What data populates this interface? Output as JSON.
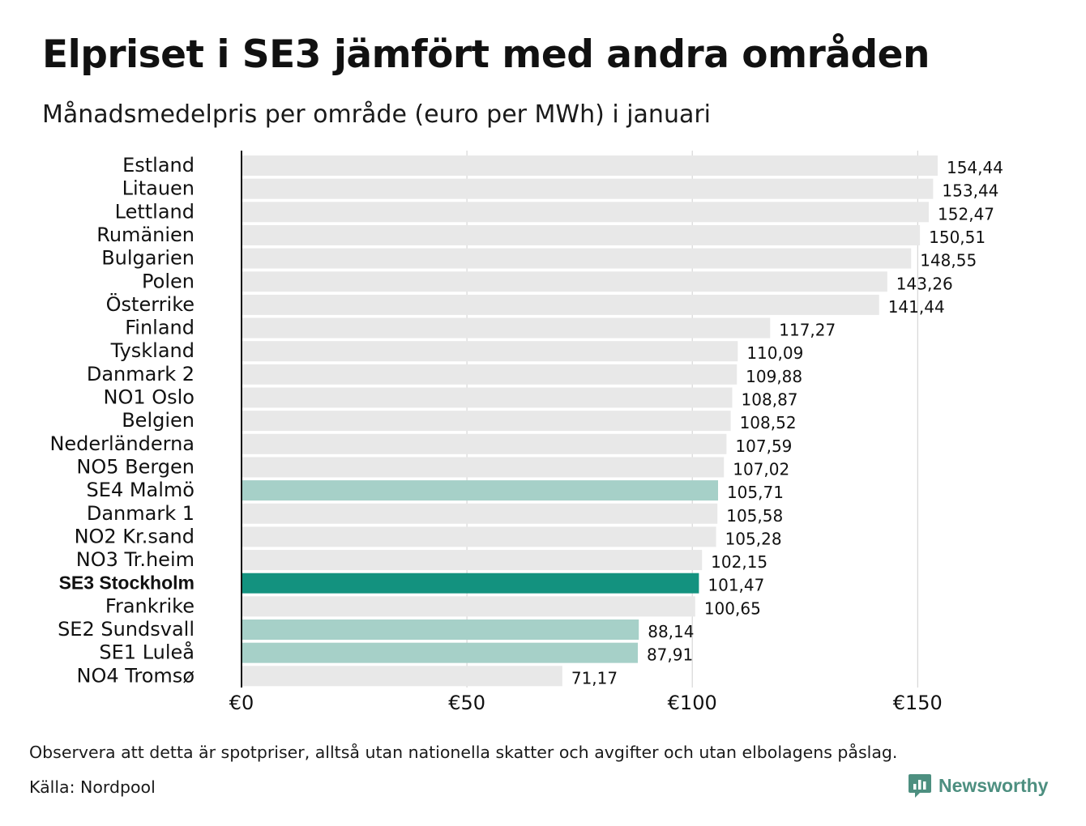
{
  "header": {
    "title": "Elpriset i SE3 jämfört med andra områden",
    "subtitle": "Månadsmedelpris per område (euro per MWh) i januari"
  },
  "footer": {
    "note": "Observera att detta är spotpriser, alltså utan nationella skatter och avgifter och utan elbolagens påslag.",
    "source": "Källa: Nordpool",
    "logo_text": "Newsworthy"
  },
  "colors": {
    "default_bar": "#e8e8e8",
    "se_bar": "#a6d0c8",
    "highlight_bar": "#13927f",
    "axis": "#111111",
    "grid": "#cfcfcf",
    "logo": "#4d8f80"
  },
  "chart_data": {
    "type": "bar",
    "orientation": "horizontal",
    "title": "Elpriset i SE3 jämfört med andra områden",
    "subtitle": "Månadsmedelpris per område (euro per MWh) i januari",
    "xlim": [
      0,
      162
    ],
    "xticks": [
      0,
      50,
      100,
      150
    ],
    "xtick_labels": [
      "€0",
      "€50",
      "€100",
      "€150"
    ],
    "grid": "vertical",
    "categories": [
      "Estland",
      "Litauen",
      "Lettland",
      "Rumänien",
      "Bulgarien",
      "Polen",
      "Österrike",
      "Finland",
      "Tyskland",
      "Danmark  2",
      "NO1  Oslo",
      "Belgien",
      "Nederländerna",
      "NO5  Bergen",
      "SE4  Malmö",
      "Danmark  1",
      "NO2  Kr.sand",
      "NO3  Tr.heim",
      "SE3 Stockholm",
      "Frankrike",
      "SE2  Sundsvall",
      "SE1  Luleå",
      "NO4  Tromsø"
    ],
    "values": [
      154.44,
      153.44,
      152.47,
      150.51,
      148.55,
      143.26,
      141.44,
      117.27,
      110.09,
      109.88,
      108.87,
      108.52,
      107.59,
      107.02,
      105.71,
      105.58,
      105.28,
      102.15,
      101.47,
      100.65,
      88.14,
      87.91,
      71.17
    ],
    "value_labels": [
      "154,44",
      "153,44",
      "152,47",
      "150,51",
      "148,55",
      "143,26",
      "141,44",
      "117,27",
      "110,09",
      "109,88",
      "108,87",
      "108,52",
      "107,59",
      "107,02",
      "105,71",
      "105,58",
      "105,28",
      "102,15",
      "101,47",
      "100,65",
      "88,14",
      "87,91",
      "71,17"
    ],
    "highlight": [
      "default",
      "default",
      "default",
      "default",
      "default",
      "default",
      "default",
      "default",
      "default",
      "default",
      "default",
      "default",
      "default",
      "default",
      "se",
      "default",
      "default",
      "default",
      "main",
      "default",
      "se",
      "se",
      "default"
    ]
  }
}
